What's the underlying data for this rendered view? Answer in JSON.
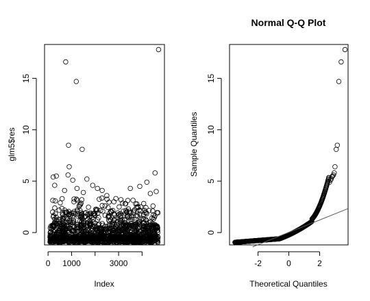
{
  "chart_data": [
    {
      "type": "scatter",
      "title": "",
      "xlabel": "Index",
      "ylabel": "glm5$res",
      "xlim": [
        -150,
        4950
      ],
      "ylim": [
        -1.2,
        18.3
      ],
      "xticks": [
        0,
        1000,
        2000,
        3000,
        4000
      ],
      "xtick_labels": [
        "0",
        "1000",
        "",
        "3000",
        ""
      ],
      "yticks": [
        0,
        5,
        10,
        15
      ],
      "ytick_labels": [
        "0",
        "5",
        "10",
        "15"
      ],
      "points": [
        [
          750,
          16.6
        ],
        [
          1200,
          14.7
        ],
        [
          4700,
          17.8
        ],
        [
          870,
          8.5
        ],
        [
          1450,
          8.1
        ],
        [
          900,
          6.4
        ],
        [
          350,
          5.5
        ],
        [
          4550,
          5.8
        ],
        [
          850,
          5.6
        ],
        [
          1230,
          4.3
        ],
        [
          1050,
          5.1
        ],
        [
          220,
          5.4
        ],
        [
          280,
          4.6
        ],
        [
          700,
          4.1
        ],
        [
          1500,
          3.9
        ],
        [
          1900,
          4.6
        ],
        [
          2100,
          4.3
        ],
        [
          2500,
          3.6
        ],
        [
          3100,
          3.2
        ],
        [
          3500,
          4.3
        ],
        [
          3900,
          4.5
        ],
        [
          4200,
          4.9
        ],
        [
          4350,
          3.8
        ],
        [
          4600,
          4.0
        ],
        [
          600,
          3.3
        ],
        [
          1650,
          5.2
        ],
        [
          2800,
          3.0
        ],
        [
          3300,
          2.8
        ],
        [
          2300,
          4.1
        ],
        [
          1100,
          3.0
        ]
      ]
    },
    {
      "type": "scatter",
      "title": "Normal Q-Q Plot",
      "xlabel": "Theoretical Quantiles",
      "ylabel": "Sample Quantiles",
      "xlim": [
        -3.85,
        3.85
      ],
      "ylim": [
        -1.2,
        18.3
      ],
      "xticks": [
        -2,
        0,
        2
      ],
      "xtick_labels": [
        "-2",
        "0",
        "2"
      ],
      "yticks": [
        0,
        5,
        10,
        15
      ],
      "ytick_labels": [
        "0",
        "5",
        "10",
        "15"
      ],
      "reference_line": {
        "intercept": 0.02,
        "slope": 0.6
      },
      "upper_tail": [
        [
          3.65,
          17.8
        ],
        [
          3.4,
          16.6
        ],
        [
          3.25,
          14.7
        ],
        [
          3.15,
          8.5
        ],
        [
          3.08,
          8.1
        ],
        [
          3.0,
          6.4
        ],
        [
          2.95,
          5.8
        ],
        [
          2.9,
          5.6
        ],
        [
          2.85,
          5.5
        ],
        [
          2.8,
          5.4
        ],
        [
          2.75,
          5.2
        ],
        [
          2.7,
          5.1
        ],
        [
          2.65,
          4.9
        ]
      ]
    }
  ]
}
